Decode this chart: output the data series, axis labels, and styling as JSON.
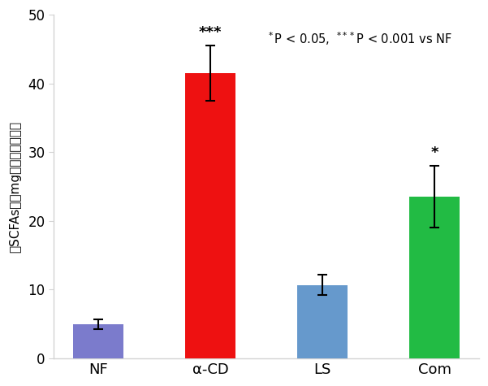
{
  "categories": [
    "NF",
    "α-CD",
    "LS",
    "Com"
  ],
  "values": [
    5.0,
    41.5,
    10.7,
    23.5
  ],
  "errors": [
    0.7,
    4.0,
    1.5,
    4.5
  ],
  "bar_colors": [
    "#7b7bcc",
    "#ee1111",
    "#6699cc",
    "#22bb44"
  ],
  "ylabel": "総SCFAs量（mg／盲腥内容物）",
  "ylim": [
    0,
    50
  ],
  "yticks": [
    0,
    10,
    20,
    30,
    40,
    50
  ],
  "significance": [
    "",
    "***",
    "",
    "*"
  ],
  "bar_width": 0.45,
  "background_color": "#ffffff",
  "figsize": [
    6.01,
    4.75
  ]
}
